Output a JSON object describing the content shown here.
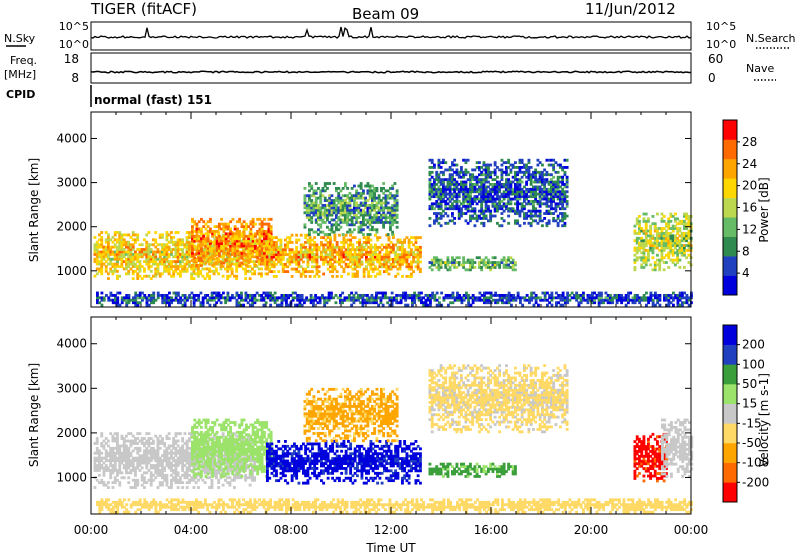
{
  "header": {
    "station": "TIGER (fitACF)",
    "beam": "Beam 09",
    "date": "11/Jun/2012"
  },
  "top_panels": {
    "nsky": {
      "label": "N.Sky",
      "ticks": [
        "10^5",
        "10^0"
      ]
    },
    "nsearch": {
      "label": "N.Search",
      "ticks": [
        "10^5",
        "10^0"
      ]
    },
    "freq": {
      "label": "Freq.",
      "unit": "[MHz]",
      "ticks": [
        "18",
        "8"
      ]
    },
    "nave": {
      "label": "Nave",
      "ticks": [
        "60",
        "0"
      ]
    },
    "cpid": {
      "label": "CPID",
      "value": "normal (fast) 151"
    }
  },
  "colors": {
    "power": [
      "#0000dd",
      "#2040c0",
      "#2f8a4f",
      "#66bb66",
      "#bcd84e",
      "#ffd700",
      "#ffa500",
      "#ff6a00",
      "#ff0000"
    ],
    "velocity": [
      "#ff0000",
      "#ff6a00",
      "#ffa500",
      "#ffd966",
      "#c8c8c8",
      "#9ce36b",
      "#3a9f3a",
      "#2040c0",
      "#0000dd"
    ]
  },
  "chart_data": [
    {
      "type": "heatmap",
      "title": "Power",
      "xlabel": "Time UT",
      "ylabel": "Slant Range [km]",
      "x_ticks": [
        "00:00",
        "04:00",
        "08:00",
        "12:00",
        "16:00",
        "20:00",
        "00:00"
      ],
      "xlim_hours": [
        0,
        24
      ],
      "ylim": [
        180,
        4600
      ],
      "y_ticks": [
        "1000",
        "2000",
        "3000",
        "4000"
      ],
      "y_tick_values": [
        1000,
        2000,
        3000,
        4000
      ],
      "colorbar": {
        "label": "Power [dB]",
        "range": [
          0,
          32
        ],
        "ticks": [
          4,
          8,
          12,
          16,
          20,
          24,
          28
        ]
      },
      "regions": [
        {
          "t": [
            0.1,
            7.2
          ],
          "r": [
            800,
            1900
          ],
          "value": 20
        },
        {
          "t": [
            4.0,
            7.2
          ],
          "r": [
            1100,
            2200
          ],
          "value": 24
        },
        {
          "t": [
            7.0,
            13.2
          ],
          "r": [
            850,
            1800
          ],
          "value": 22
        },
        {
          "t": [
            8.5,
            12.2
          ],
          "r": [
            1800,
            3000
          ],
          "value": 10
        },
        {
          "t": [
            13.5,
            19.0
          ],
          "r": [
            2000,
            3500
          ],
          "value": 6
        },
        {
          "t": [
            13.5,
            17.0
          ],
          "r": [
            1000,
            1300
          ],
          "value": 12
        },
        {
          "t": [
            21.7,
            24.0
          ],
          "r": [
            1000,
            2300
          ],
          "value": 16
        },
        {
          "t": [
            0.2,
            24.0
          ],
          "r": [
            200,
            500
          ],
          "value": 5
        }
      ]
    },
    {
      "type": "heatmap",
      "title": "Velocity",
      "xlabel": "Time UT",
      "ylabel": "Slant Range [km]",
      "x_ticks": [
        "00:00",
        "04:00",
        "08:00",
        "12:00",
        "16:00",
        "20:00",
        "00:00"
      ],
      "xlim_hours": [
        0,
        24
      ],
      "ylim": [
        180,
        4600
      ],
      "y_ticks": [
        "1000",
        "2000",
        "3000",
        "4000"
      ],
      "y_tick_values": [
        1000,
        2000,
        3000,
        4000
      ],
      "colorbar": {
        "label": "Velocity [m s-1]",
        "ticks": [
          "200",
          "100",
          "50",
          "15",
          "-15",
          "-50",
          "-100",
          "-200"
        ]
      },
      "regions": [
        {
          "t": [
            0.1,
            6.5
          ],
          "r": [
            750,
            2000
          ],
          "value": 0
        },
        {
          "t": [
            4.0,
            7.2
          ],
          "r": [
            1000,
            2300
          ],
          "value": 30
        },
        {
          "t": [
            7.0,
            13.2
          ],
          "r": [
            850,
            1800
          ],
          "value": 250
        },
        {
          "t": [
            8.5,
            12.2
          ],
          "r": [
            1800,
            3000
          ],
          "value": -60
        },
        {
          "t": [
            13.5,
            19.0
          ],
          "r": [
            2000,
            3500
          ],
          "value": -20
        },
        {
          "t": [
            13.5,
            17.0
          ],
          "r": [
            1000,
            1300
          ],
          "value": 60
        },
        {
          "t": [
            21.7,
            23.0
          ],
          "r": [
            900,
            2000
          ],
          "value": -250
        },
        {
          "t": [
            22.8,
            24.0
          ],
          "r": [
            1000,
            2300
          ],
          "value": 0
        },
        {
          "t": [
            0.2,
            24.0
          ],
          "r": [
            200,
            500
          ],
          "value": -30
        }
      ]
    }
  ]
}
